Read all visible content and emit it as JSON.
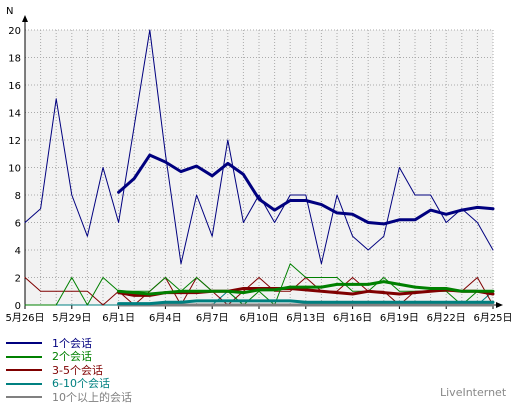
{
  "chart_data": {
    "type": "line",
    "ylabel": "N",
    "ylim": [
      0,
      20
    ],
    "yticks": [
      0,
      2,
      4,
      6,
      8,
      10,
      12,
      14,
      16,
      18,
      20
    ],
    "x": [
      "5月26日",
      "5月27日",
      "5月28日",
      "5月29日",
      "5月30日",
      "5月31日",
      "6月1日",
      "6月2日",
      "6月3日",
      "6月4日",
      "6月5日",
      "6月6日",
      "6月7日",
      "6月8日",
      "6月9日",
      "6月10日",
      "6月11日",
      "6月12日",
      "6月13日",
      "6月14日",
      "6月15日",
      "6月16日",
      "6月17日",
      "6月18日",
      "6月19日",
      "6月20日",
      "6月21日",
      "6月22日",
      "6月23日",
      "6月24日",
      "6月25日"
    ],
    "xticks": [
      "5月26日",
      "5月29日",
      "6月1日",
      "6月4日",
      "6月7日",
      "6月10日",
      "6月13日",
      "6月16日",
      "6月19日",
      "6月22日",
      "6月25日"
    ],
    "grid": true,
    "legend_position": "bottom-left",
    "series": [
      {
        "name": "1个会话",
        "color": "#00007f",
        "daily": [
          6,
          7,
          15,
          8,
          5,
          10,
          6,
          13,
          20,
          11,
          3,
          8,
          5,
          12,
          6,
          8,
          6,
          8,
          8,
          3,
          8,
          5,
          4,
          5,
          10,
          8,
          8,
          6,
          7,
          6,
          4
        ],
        "avg": [
          null,
          null,
          null,
          null,
          null,
          null,
          8.2,
          9.2,
          10.9,
          10.4,
          9.7,
          10.1,
          9.4,
          10.3,
          9.5,
          7.7,
          6.9,
          7.6,
          7.6,
          7.3,
          6.7,
          6.6,
          6.0,
          5.9,
          6.2,
          6.2,
          6.9,
          6.6,
          6.9,
          7.1,
          7.0
        ]
      },
      {
        "name": "2个会话",
        "color": "#008000",
        "daily": [
          0,
          0,
          0,
          2,
          0,
          2,
          1,
          1,
          1,
          2,
          1,
          2,
          1,
          1,
          0,
          1,
          0,
          3,
          2,
          2,
          2,
          1,
          1,
          2,
          1,
          1,
          1,
          1,
          0,
          1,
          1
        ],
        "avg": [
          null,
          null,
          null,
          null,
          null,
          null,
          1.0,
          0.9,
          0.8,
          0.9,
          1.0,
          1.0,
          1.0,
          1.0,
          0.9,
          1.1,
          1.1,
          1.3,
          1.3,
          1.3,
          1.5,
          1.5,
          1.5,
          1.7,
          1.5,
          1.3,
          1.2,
          1.2,
          1.0,
          1.0,
          1.0
        ]
      },
      {
        "name": "3-5个会话",
        "color": "#7f0000",
        "daily": [
          2,
          1,
          1,
          1,
          1,
          0,
          1,
          0,
          1,
          2,
          0,
          2,
          1,
          0,
          1,
          2,
          1,
          1,
          2,
          1,
          1,
          2,
          1,
          1,
          0,
          1,
          1,
          1,
          1,
          2,
          0
        ],
        "avg": [
          null,
          null,
          null,
          null,
          null,
          null,
          0.9,
          0.7,
          0.7,
          0.9,
          0.9,
          0.9,
          1.0,
          1.0,
          1.2,
          1.2,
          1.2,
          1.2,
          1.1,
          1.0,
          0.9,
          0.8,
          1.0,
          0.9,
          0.8,
          0.9,
          1.0,
          1.1,
          1.0,
          1.0,
          0.8
        ]
      },
      {
        "name": "6-10个会话",
        "color": "#008080",
        "daily": [
          0,
          0,
          0,
          0,
          0,
          0,
          0,
          0,
          0,
          0,
          0,
          0,
          0,
          1,
          0,
          0,
          0,
          0,
          0,
          0,
          0,
          0,
          0,
          0,
          0,
          0,
          0,
          0,
          0,
          0,
          1
        ],
        "avg": [
          null,
          null,
          null,
          null,
          null,
          null,
          0.1,
          0.1,
          0.1,
          0.2,
          0.2,
          0.3,
          0.3,
          0.3,
          0.3,
          0.3,
          0.3,
          0.3,
          0.2,
          0.2,
          0.2,
          0.2,
          0.2,
          0.2,
          0.2,
          0.2,
          0.2,
          0.2,
          0.2,
          0.2,
          0.2
        ]
      },
      {
        "name": "10个以上的会话",
        "color": "#808080",
        "daily": [
          0,
          0,
          0,
          0,
          0,
          0,
          0,
          0,
          0,
          0,
          0,
          0,
          0,
          0,
          0,
          0,
          0,
          0,
          0,
          0,
          0,
          0,
          0,
          0,
          0,
          0,
          0,
          0,
          0,
          0,
          0
        ],
        "avg": [
          null,
          null,
          null,
          null,
          null,
          null,
          0,
          0,
          0,
          0,
          0,
          0,
          0,
          0,
          0,
          0,
          0,
          0,
          0,
          0,
          0,
          0,
          0,
          0,
          0,
          0,
          0,
          0,
          0,
          0,
          0
        ]
      }
    ]
  },
  "watermark": "LiveInternet"
}
